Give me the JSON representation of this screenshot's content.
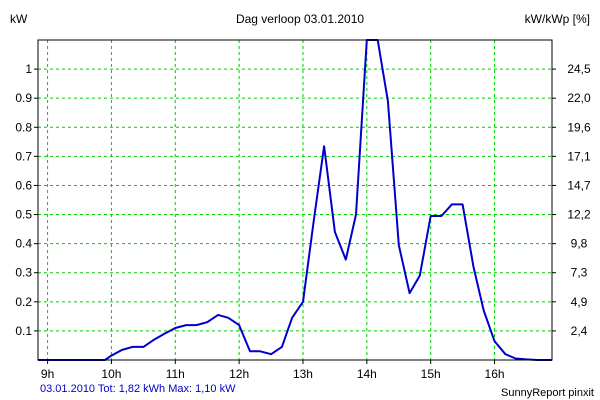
{
  "chart_data": {
    "type": "line",
    "title": "Dag  verloop 03.01.2010",
    "left_unit": "kW",
    "right_unit": "kW/kWp [%]",
    "x_range": [
      8.85,
      16.9
    ],
    "x_ticks": [
      {
        "value": 9,
        "label": "9h"
      },
      {
        "value": 10,
        "label": "10h"
      },
      {
        "value": 11,
        "label": "11h"
      },
      {
        "value": 12,
        "label": "12h"
      },
      {
        "value": 13,
        "label": "13h"
      },
      {
        "value": 14,
        "label": "14h"
      },
      {
        "value": 15,
        "label": "15h"
      },
      {
        "value": 16,
        "label": "16h"
      }
    ],
    "y_range": [
      0,
      1.1
    ],
    "y_ticks": [
      {
        "value": 0.1,
        "label": "0.1"
      },
      {
        "value": 0.2,
        "label": "0.2"
      },
      {
        "value": 0.3,
        "label": "0.3"
      },
      {
        "value": 0.4,
        "label": "0.4"
      },
      {
        "value": 0.5,
        "label": "0.5"
      },
      {
        "value": 0.6,
        "label": "0.6"
      },
      {
        "value": 0.7,
        "label": "0.7"
      },
      {
        "value": 0.8,
        "label": "0.8"
      },
      {
        "value": 0.9,
        "label": "0.9"
      },
      {
        "value": 1.0,
        "label": "1"
      }
    ],
    "y2_ticks": [
      {
        "value": 0.1,
        "label": "2,4"
      },
      {
        "value": 0.2,
        "label": "4,9"
      },
      {
        "value": 0.3,
        "label": "7,3"
      },
      {
        "value": 0.4,
        "label": "9,8"
      },
      {
        "value": 0.5,
        "label": "12,2"
      },
      {
        "value": 0.6,
        "label": "14,7"
      },
      {
        "value": 0.7,
        "label": "17,1"
      },
      {
        "value": 0.8,
        "label": "19,6"
      },
      {
        "value": 0.9,
        "label": "22,0"
      },
      {
        "value": 1.0,
        "label": "24,5"
      }
    ],
    "grid": true,
    "series": [
      {
        "color": "#0000cc",
        "x": [
          8.85,
          9.0,
          9.5,
          9.9,
          10.0,
          10.17,
          10.33,
          10.5,
          10.67,
          10.83,
          11.0,
          11.17,
          11.33,
          11.5,
          11.67,
          11.83,
          12.0,
          12.17,
          12.33,
          12.5,
          12.67,
          12.83,
          13.0,
          13.17,
          13.33,
          13.5,
          13.67,
          13.83,
          14.0,
          14.17,
          14.33,
          14.5,
          14.67,
          14.83,
          15.0,
          15.17,
          15.33,
          15.5,
          15.67,
          15.83,
          16.0,
          16.17,
          16.33,
          16.5,
          16.67,
          16.9
        ],
        "y": [
          0.0,
          0.0,
          0.0,
          0.0,
          0.015,
          0.035,
          0.045,
          0.045,
          0.07,
          0.09,
          0.11,
          0.12,
          0.12,
          0.13,
          0.155,
          0.145,
          0.12,
          0.03,
          0.03,
          0.02,
          0.045,
          0.145,
          0.2,
          0.48,
          0.735,
          0.44,
          0.345,
          0.5,
          1.1,
          1.1,
          0.89,
          0.395,
          0.23,
          0.29,
          0.495,
          0.495,
          0.535,
          0.535,
          0.32,
          0.17,
          0.065,
          0.02,
          0.005,
          0.002,
          0.0,
          0.0
        ]
      }
    ]
  },
  "footer": {
    "summary": "03.01.2010 Tot: 1,82 kWh Max: 1,10 kW",
    "credit": "SunnyReport pinxit"
  },
  "colors": {
    "grid": "#00cc00",
    "frame": "#000000",
    "line": "#0000cc",
    "summary_text": "#0000cc"
  }
}
